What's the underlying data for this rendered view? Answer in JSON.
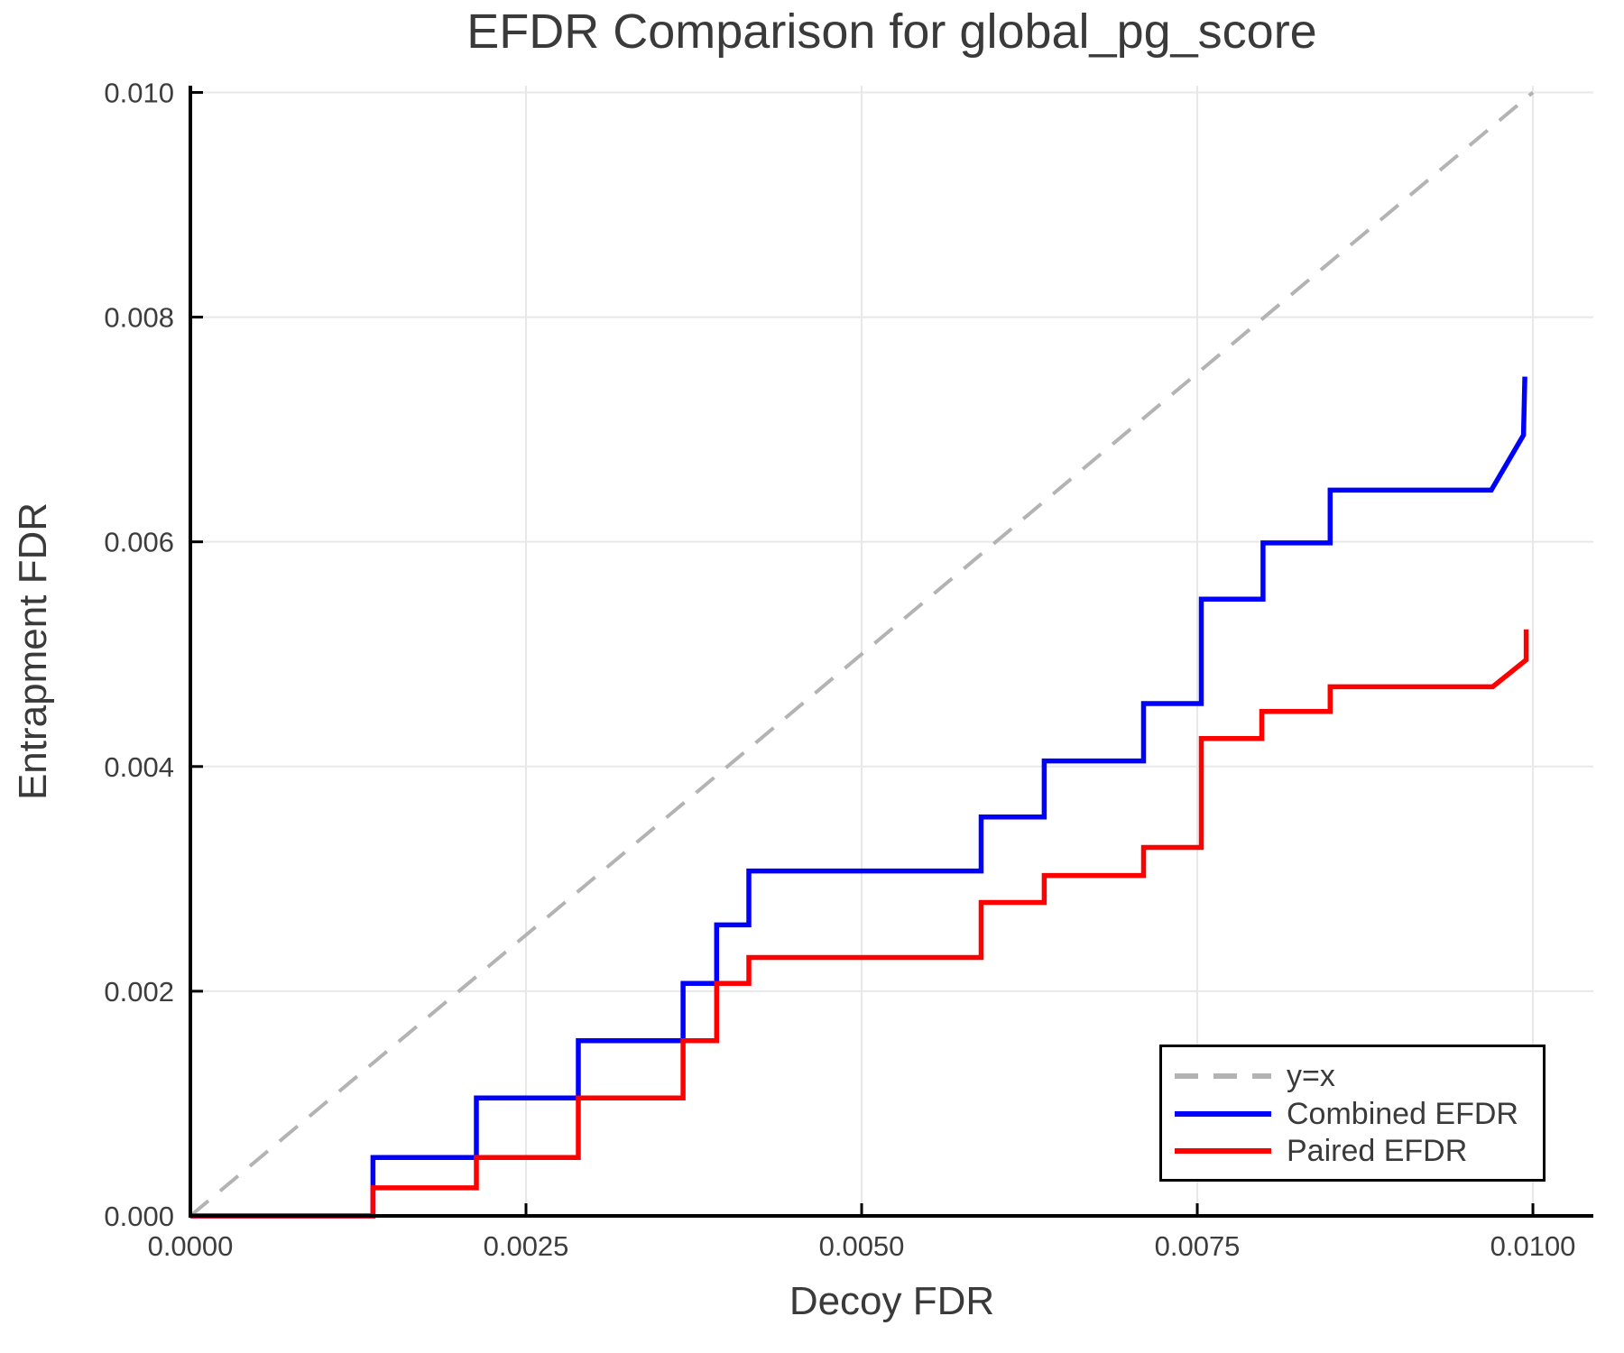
{
  "chart_data": {
    "type": "line",
    "title": "EFDR Comparison for global_pg_score",
    "xlabel": "Decoy FDR",
    "ylabel": "Entrapment FDR",
    "xlim": [
      0.0,
      0.01045
    ],
    "ylim": [
      0.0,
      0.01006
    ],
    "grid": true,
    "legend_position": "lower right",
    "xticks": {
      "values": [
        0.0,
        0.0025,
        0.005,
        0.0075,
        0.01
      ],
      "labels": [
        "0.0000",
        "0.0025",
        "0.0050",
        "0.0075",
        "0.0100"
      ]
    },
    "yticks": {
      "values": [
        0.0,
        0.002,
        0.004,
        0.006,
        0.008,
        0.01
      ],
      "labels": [
        "0.000",
        "0.002",
        "0.004",
        "0.006",
        "0.008",
        "0.010"
      ]
    },
    "colors": {
      "grid": "#e8e8e8",
      "axis": "#000000",
      "tick_text": "#3d3d3d",
      "title_text": "#3a3a3a"
    },
    "series": [
      {
        "name": "y=x",
        "style": "dashed",
        "color": "#b3b3b3",
        "width": 4,
        "points": [
          [
            0.0,
            0.0
          ],
          [
            0.01,
            0.01
          ]
        ]
      },
      {
        "name": "Combined EFDR",
        "style": "solid",
        "color": "#0000ff",
        "width": 5.5,
        "points": [
          [
            0.0,
            0.0
          ],
          [
            0.00136,
            0.0
          ],
          [
            0.00136,
            0.00052
          ],
          [
            0.00213,
            0.00052
          ],
          [
            0.00213,
            0.00105
          ],
          [
            0.00289,
            0.00105
          ],
          [
            0.00289,
            0.00156
          ],
          [
            0.00367,
            0.00156
          ],
          [
            0.00367,
            0.00207
          ],
          [
            0.00392,
            0.00207
          ],
          [
            0.00392,
            0.00259
          ],
          [
            0.00416,
            0.00259
          ],
          [
            0.00416,
            0.00307
          ],
          [
            0.00589,
            0.00307
          ],
          [
            0.00589,
            0.00355
          ],
          [
            0.00636,
            0.00355
          ],
          [
            0.00636,
            0.00405
          ],
          [
            0.0071,
            0.00405
          ],
          [
            0.0071,
            0.00456
          ],
          [
            0.00753,
            0.00456
          ],
          [
            0.00753,
            0.00549
          ],
          [
            0.00799,
            0.00549
          ],
          [
            0.00799,
            0.00599
          ],
          [
            0.00849,
            0.00599
          ],
          [
            0.00849,
            0.00646
          ],
          [
            0.00969,
            0.00646
          ],
          [
            0.00993,
            0.00695
          ],
          [
            0.00994,
            0.00747
          ]
        ]
      },
      {
        "name": "Paired EFDR",
        "style": "solid",
        "color": "#ff0000",
        "width": 5.5,
        "points": [
          [
            0.0,
            0.0
          ],
          [
            0.00136,
            0.0
          ],
          [
            0.00136,
            0.00025
          ],
          [
            0.00213,
            0.00025
          ],
          [
            0.00213,
            0.00052
          ],
          [
            0.00289,
            0.00052
          ],
          [
            0.00289,
            0.00105
          ],
          [
            0.00367,
            0.00105
          ],
          [
            0.00367,
            0.00156
          ],
          [
            0.00392,
            0.00156
          ],
          [
            0.00392,
            0.00207
          ],
          [
            0.00416,
            0.00207
          ],
          [
            0.00416,
            0.0023
          ],
          [
            0.00589,
            0.0023
          ],
          [
            0.00589,
            0.00279
          ],
          [
            0.00636,
            0.00279
          ],
          [
            0.00636,
            0.00303
          ],
          [
            0.0071,
            0.00303
          ],
          [
            0.0071,
            0.00328
          ],
          [
            0.00753,
            0.00328
          ],
          [
            0.00753,
            0.00425
          ],
          [
            0.00798,
            0.00425
          ],
          [
            0.00798,
            0.00449
          ],
          [
            0.00849,
            0.00449
          ],
          [
            0.00849,
            0.00471
          ],
          [
            0.0097,
            0.00471
          ],
          [
            0.00995,
            0.00495
          ],
          [
            0.00995,
            0.00522
          ]
        ]
      }
    ]
  }
}
